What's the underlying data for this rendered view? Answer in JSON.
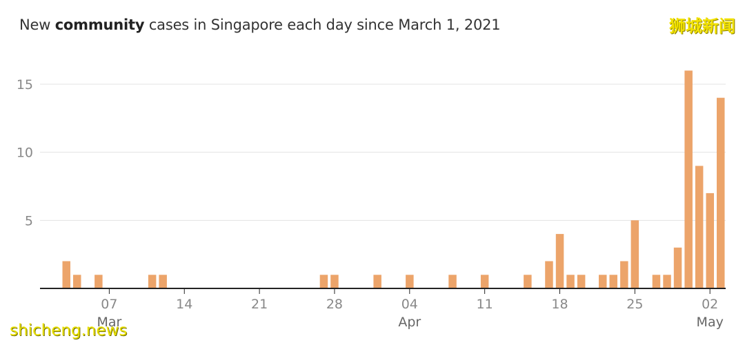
{
  "header": {
    "title_pre": "New ",
    "title_bold": "community",
    "title_post": " cases in Singapore each day since March 1, 2021",
    "watermark_top": "狮城新闻",
    "watermark_bottom": "shicheng.news"
  },
  "colors": {
    "bar": "#eca46a",
    "grid": "#e3e3e3",
    "axis": "#222222"
  },
  "chart_data": {
    "type": "bar",
    "title": "New community cases in Singapore each day since March 1, 2021",
    "x_start": "2021-03-01",
    "x_end": "2021-05-03",
    "x": [
      "2021-03-03",
      "2021-03-04",
      "2021-03-06",
      "2021-03-11",
      "2021-03-12",
      "2021-03-27",
      "2021-03-28",
      "2021-04-01",
      "2021-04-04",
      "2021-04-08",
      "2021-04-11",
      "2021-04-15",
      "2021-04-17",
      "2021-04-18",
      "2021-04-19",
      "2021-04-20",
      "2021-04-22",
      "2021-04-23",
      "2021-04-24",
      "2021-04-25",
      "2021-04-27",
      "2021-04-28",
      "2021-04-29",
      "2021-04-30",
      "2021-05-01",
      "2021-05-02",
      "2021-05-03"
    ],
    "values": [
      2,
      1,
      1,
      1,
      1,
      1,
      1,
      1,
      1,
      1,
      1,
      1,
      2,
      4,
      1,
      1,
      1,
      1,
      2,
      5,
      1,
      1,
      3,
      16,
      9,
      7,
      14
    ],
    "ylim": [
      0,
      17
    ],
    "yticks": [
      5,
      10,
      15
    ],
    "xticks": [
      {
        "date": "2021-03-07",
        "label": "07",
        "month": "Mar"
      },
      {
        "date": "2021-03-14",
        "label": "14",
        "month": ""
      },
      {
        "date": "2021-03-21",
        "label": "21",
        "month": ""
      },
      {
        "date": "2021-03-28",
        "label": "28",
        "month": ""
      },
      {
        "date": "2021-04-04",
        "label": "04",
        "month": "Apr"
      },
      {
        "date": "2021-04-11",
        "label": "11",
        "month": ""
      },
      {
        "date": "2021-04-18",
        "label": "18",
        "month": ""
      },
      {
        "date": "2021-04-25",
        "label": "25",
        "month": ""
      },
      {
        "date": "2021-05-02",
        "label": "02",
        "month": "May"
      }
    ],
    "grid": true,
    "xlabel": "",
    "ylabel": ""
  }
}
